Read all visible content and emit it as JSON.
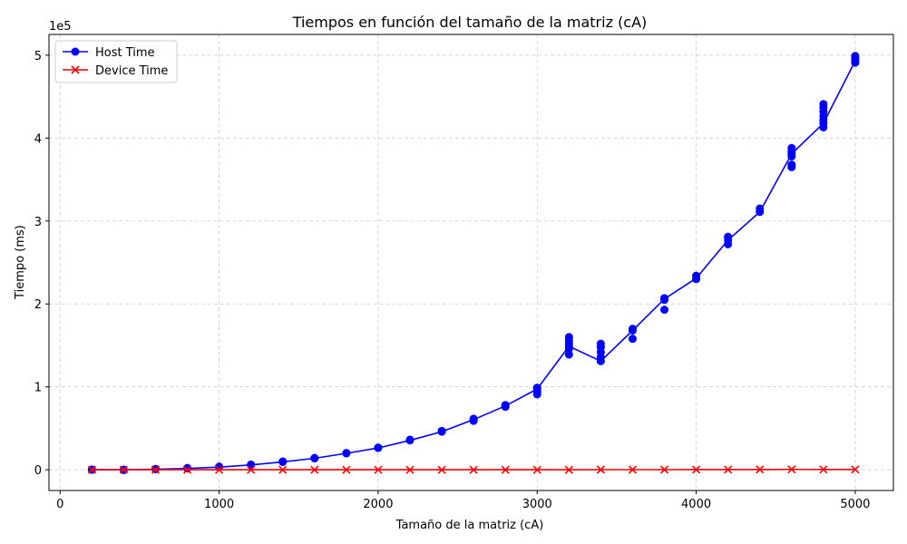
{
  "chart_data": {
    "type": "line",
    "title": "Tiempos en función del tamaño de la matriz (cA)",
    "xlabel": "Tamaño de la matriz (cA)",
    "ylabel": "Tiempo (ms)",
    "y_offset_label": "1e5",
    "xlim": [
      -70,
      5240
    ],
    "ylim": [
      -25000,
      525000
    ],
    "x_ticks": [
      0,
      1000,
      2000,
      3000,
      4000,
      5000
    ],
    "x_tick_labels": [
      "0",
      "1000",
      "2000",
      "3000",
      "4000",
      "5000"
    ],
    "y_ticks": [
      0,
      100000,
      200000,
      300000,
      400000,
      500000
    ],
    "y_tick_labels": [
      "0",
      "1",
      "2",
      "3",
      "4",
      "5"
    ],
    "grid": true,
    "legend_position": "top-left",
    "series": [
      {
        "name": "Host Time",
        "color": "#0000ff",
        "marker": "circle",
        "line": [
          [
            200,
            0
          ],
          [
            400,
            200
          ],
          [
            600,
            700
          ],
          [
            800,
            1600
          ],
          [
            1000,
            3200
          ],
          [
            1200,
            5800
          ],
          [
            1400,
            9500
          ],
          [
            1600,
            13800
          ],
          [
            1800,
            19800
          ],
          [
            2000,
            26300
          ],
          [
            2200,
            35500
          ],
          [
            2400,
            46000
          ],
          [
            2600,
            60500
          ],
          [
            2800,
            77000
          ],
          [
            3000,
            97500
          ],
          [
            3200,
            149000
          ],
          [
            3400,
            131000
          ],
          [
            3600,
            168000
          ],
          [
            3800,
            206000
          ],
          [
            4000,
            231000
          ],
          [
            4200,
            277000
          ],
          [
            4400,
            311000
          ],
          [
            4600,
            381000
          ],
          [
            4800,
            418000
          ],
          [
            5000,
            493000
          ]
        ],
        "points": [
          [
            200,
            0
          ],
          [
            200,
            300
          ],
          [
            400,
            200
          ],
          [
            400,
            -400
          ],
          [
            600,
            700
          ],
          [
            600,
            1000
          ],
          [
            800,
            1600
          ],
          [
            800,
            2200
          ],
          [
            1000,
            3200
          ],
          [
            1000,
            3800
          ],
          [
            1200,
            5800
          ],
          [
            1200,
            6200
          ],
          [
            1400,
            9500
          ],
          [
            1400,
            10000
          ],
          [
            1600,
            13800
          ],
          [
            1600,
            14200
          ],
          [
            1800,
            19800
          ],
          [
            1800,
            20200
          ],
          [
            2000,
            26300
          ],
          [
            2000,
            26800
          ],
          [
            2200,
            35500
          ],
          [
            2200,
            36300
          ],
          [
            2400,
            46000
          ],
          [
            2400,
            46800
          ],
          [
            2600,
            59000
          ],
          [
            2600,
            60500
          ],
          [
            2600,
            61500
          ],
          [
            2800,
            76000
          ],
          [
            2800,
            77000
          ],
          [
            2800,
            78000
          ],
          [
            3000,
            91000
          ],
          [
            3000,
            94000
          ],
          [
            3000,
            97500
          ],
          [
            3000,
            99000
          ],
          [
            3200,
            139000
          ],
          [
            3200,
            146000
          ],
          [
            3200,
            149000
          ],
          [
            3200,
            152000
          ],
          [
            3200,
            156000
          ],
          [
            3200,
            160000
          ],
          [
            3400,
            131000
          ],
          [
            3400,
            136000
          ],
          [
            3400,
            142000
          ],
          [
            3400,
            148000
          ],
          [
            3400,
            152000
          ],
          [
            3600,
            158000
          ],
          [
            3600,
            168000
          ],
          [
            3600,
            170000
          ],
          [
            3800,
            193000
          ],
          [
            3800,
            205000
          ],
          [
            3800,
            207000
          ],
          [
            4000,
            230000
          ],
          [
            4000,
            231000
          ],
          [
            4000,
            234000
          ],
          [
            4200,
            272000
          ],
          [
            4200,
            277000
          ],
          [
            4200,
            281000
          ],
          [
            4400,
            311000
          ],
          [
            4400,
            315000
          ],
          [
            4600,
            365000
          ],
          [
            4600,
            368000
          ],
          [
            4600,
            378000
          ],
          [
            4600,
            381000
          ],
          [
            4600,
            384000
          ],
          [
            4600,
            388000
          ],
          [
            4800,
            413000
          ],
          [
            4800,
            418000
          ],
          [
            4800,
            422000
          ],
          [
            4800,
            427000
          ],
          [
            4800,
            432000
          ],
          [
            4800,
            437000
          ],
          [
            4800,
            441000
          ],
          [
            5000,
            491000
          ],
          [
            5000,
            493000
          ],
          [
            5000,
            496000
          ],
          [
            5000,
            499000
          ]
        ]
      },
      {
        "name": "Device Time",
        "color": "#ff0000",
        "marker": "x",
        "line": [
          [
            200,
            0
          ],
          [
            400,
            0
          ],
          [
            600,
            0
          ],
          [
            800,
            0
          ],
          [
            1000,
            0
          ],
          [
            1200,
            0
          ],
          [
            1400,
            0
          ],
          [
            1600,
            0
          ],
          [
            1800,
            0
          ],
          [
            2000,
            0
          ],
          [
            2200,
            0
          ],
          [
            2400,
            0
          ],
          [
            2600,
            0
          ],
          [
            2800,
            0
          ],
          [
            3000,
            0
          ],
          [
            3200,
            0
          ],
          [
            3400,
            150
          ],
          [
            3600,
            150
          ],
          [
            3800,
            150
          ],
          [
            4000,
            250
          ],
          [
            4200,
            250
          ],
          [
            4400,
            300
          ],
          [
            4600,
            450
          ],
          [
            4800,
            350
          ],
          [
            5000,
            400
          ]
        ],
        "points": [
          [
            200,
            0
          ],
          [
            400,
            0
          ],
          [
            600,
            0
          ],
          [
            800,
            0
          ],
          [
            1000,
            0
          ],
          [
            1200,
            0
          ],
          [
            1400,
            0
          ],
          [
            1600,
            0
          ],
          [
            1800,
            0
          ],
          [
            2000,
            0
          ],
          [
            2200,
            0
          ],
          [
            2400,
            0
          ],
          [
            2600,
            0
          ],
          [
            2800,
            0
          ],
          [
            3000,
            0
          ],
          [
            3200,
            0
          ],
          [
            3400,
            150
          ],
          [
            3600,
            150
          ],
          [
            3800,
            150
          ],
          [
            4000,
            250
          ],
          [
            4200,
            250
          ],
          [
            4400,
            300
          ],
          [
            4600,
            450
          ],
          [
            4800,
            350
          ],
          [
            5000,
            400
          ]
        ]
      }
    ]
  }
}
